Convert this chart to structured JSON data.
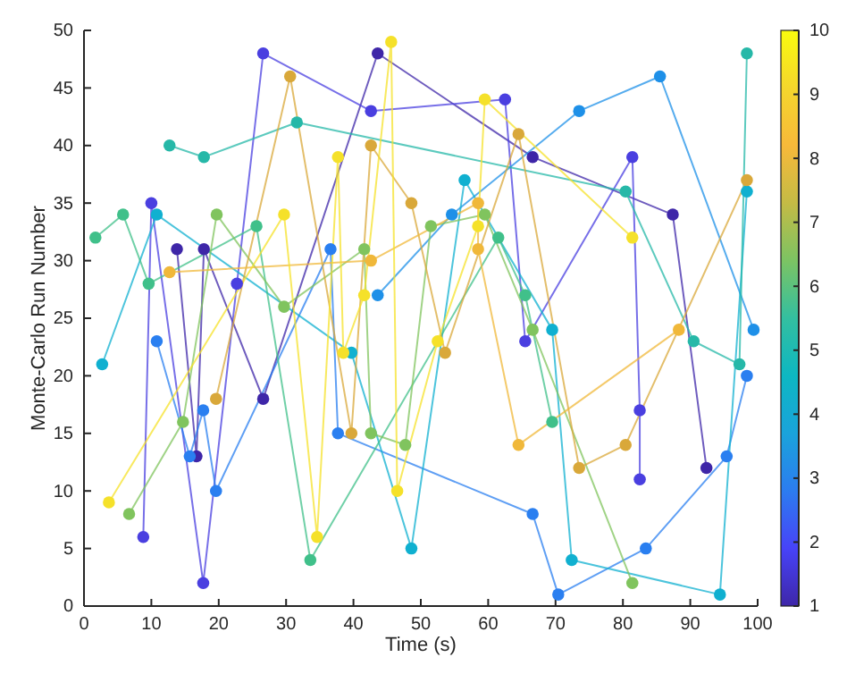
{
  "chart_data": {
    "type": "line",
    "xlabel": "Time (s)",
    "ylabel": "Monte-Carlo Run Number",
    "xlim": [
      0,
      100
    ],
    "xticks": [
      0,
      10,
      20,
      30,
      40,
      50,
      60,
      70,
      80,
      90,
      100
    ],
    "ylim": [
      0,
      50
    ],
    "yticks": [
      0,
      5,
      10,
      15,
      20,
      25,
      30,
      35,
      40,
      45,
      50
    ],
    "clim": [
      1,
      10
    ],
    "cticks": [
      1,
      2,
      3,
      4,
      5,
      6,
      7,
      8,
      9,
      10
    ],
    "grid": false,
    "marker": "circle",
    "line_style": "solid",
    "series": [
      {
        "color": "#3e26a8",
        "x": [
          13.8,
          16.7,
          17.8,
          26.6,
          43.6,
          66.6,
          87.4,
          92.4
        ],
        "values": [
          31,
          13,
          31,
          18,
          48,
          39,
          34,
          12
        ]
      },
      {
        "color": "#4a3fe0",
        "x": [
          8.8,
          10,
          17.7,
          22.7,
          26.6,
          42.6,
          62.5,
          65.5,
          81.4,
          82.5,
          82.5
        ],
        "values": [
          6,
          35,
          2,
          28,
          48,
          43,
          44,
          23,
          39,
          17,
          11
        ]
      },
      {
        "color": "#2a7ff0",
        "x": [
          10.8,
          15.7,
          17.7,
          19.6,
          36.6,
          37.7,
          66.6,
          70.4,
          83.4,
          95.4,
          98.4
        ],
        "values": [
          23,
          13,
          17,
          10,
          31,
          15,
          8,
          1,
          5,
          13,
          20
        ]
      },
      {
        "color": "#1e90e8",
        "x": [
          43.6,
          54.6,
          73.5,
          85.5,
          99.4
        ],
        "values": [
          27,
          34,
          43,
          46,
          24
        ]
      },
      {
        "color": "#10b0d0",
        "x": [
          2.7,
          10.8,
          39.7,
          48.6,
          56.5,
          69.5,
          72.4,
          94.4,
          98.4
        ],
        "values": [
          21,
          34,
          22,
          5,
          37,
          24,
          4,
          1,
          36
        ]
      },
      {
        "color": "#26b8a8",
        "x": [
          12.7,
          17.8,
          31.6,
          80.4,
          90.5,
          97.3,
          98.4
        ],
        "values": [
          40,
          39,
          42,
          36,
          23,
          21,
          48
        ]
      },
      {
        "color": "#40c08a",
        "x": [
          1.7,
          5.8,
          9.6,
          25.6,
          33.6,
          61.5,
          65.5,
          69.5
        ],
        "values": [
          32,
          34,
          28,
          33,
          4,
          32,
          27,
          16
        ]
      },
      {
        "color": "#80c45e",
        "x": [
          6.7,
          14.7,
          19.7,
          29.7,
          41.6,
          42.6,
          47.7,
          51.5,
          59.5,
          66.6,
          81.4
        ],
        "values": [
          8,
          16,
          34,
          26,
          31,
          15,
          14,
          33,
          34,
          24,
          2
        ]
      },
      {
        "color": "#d9a83a",
        "x": [
          19.6,
          30.6,
          39.7,
          42.6,
          48.6,
          53.6,
          64.5,
          73.5,
          80.4,
          98.4
        ],
        "values": [
          18,
          46,
          15,
          40,
          35,
          22,
          41,
          12,
          14,
          37
        ]
      },
      {
        "color": "#f0b83a",
        "x": [
          12.7,
          42.6,
          58.5,
          58.5,
          64.5,
          88.3
        ],
        "values": [
          29,
          30,
          35,
          31,
          14,
          24
        ]
      },
      {
        "color": "#f5e12a",
        "x": [
          3.7,
          29.7,
          34.6,
          37.7,
          38.5,
          41.6,
          45.6,
          46.5,
          52.5,
          58.5,
          59.5,
          81.4
        ],
        "values": [
          9,
          34,
          6,
          39,
          22,
          27,
          49,
          10,
          23,
          33,
          44,
          32
        ]
      }
    ]
  }
}
